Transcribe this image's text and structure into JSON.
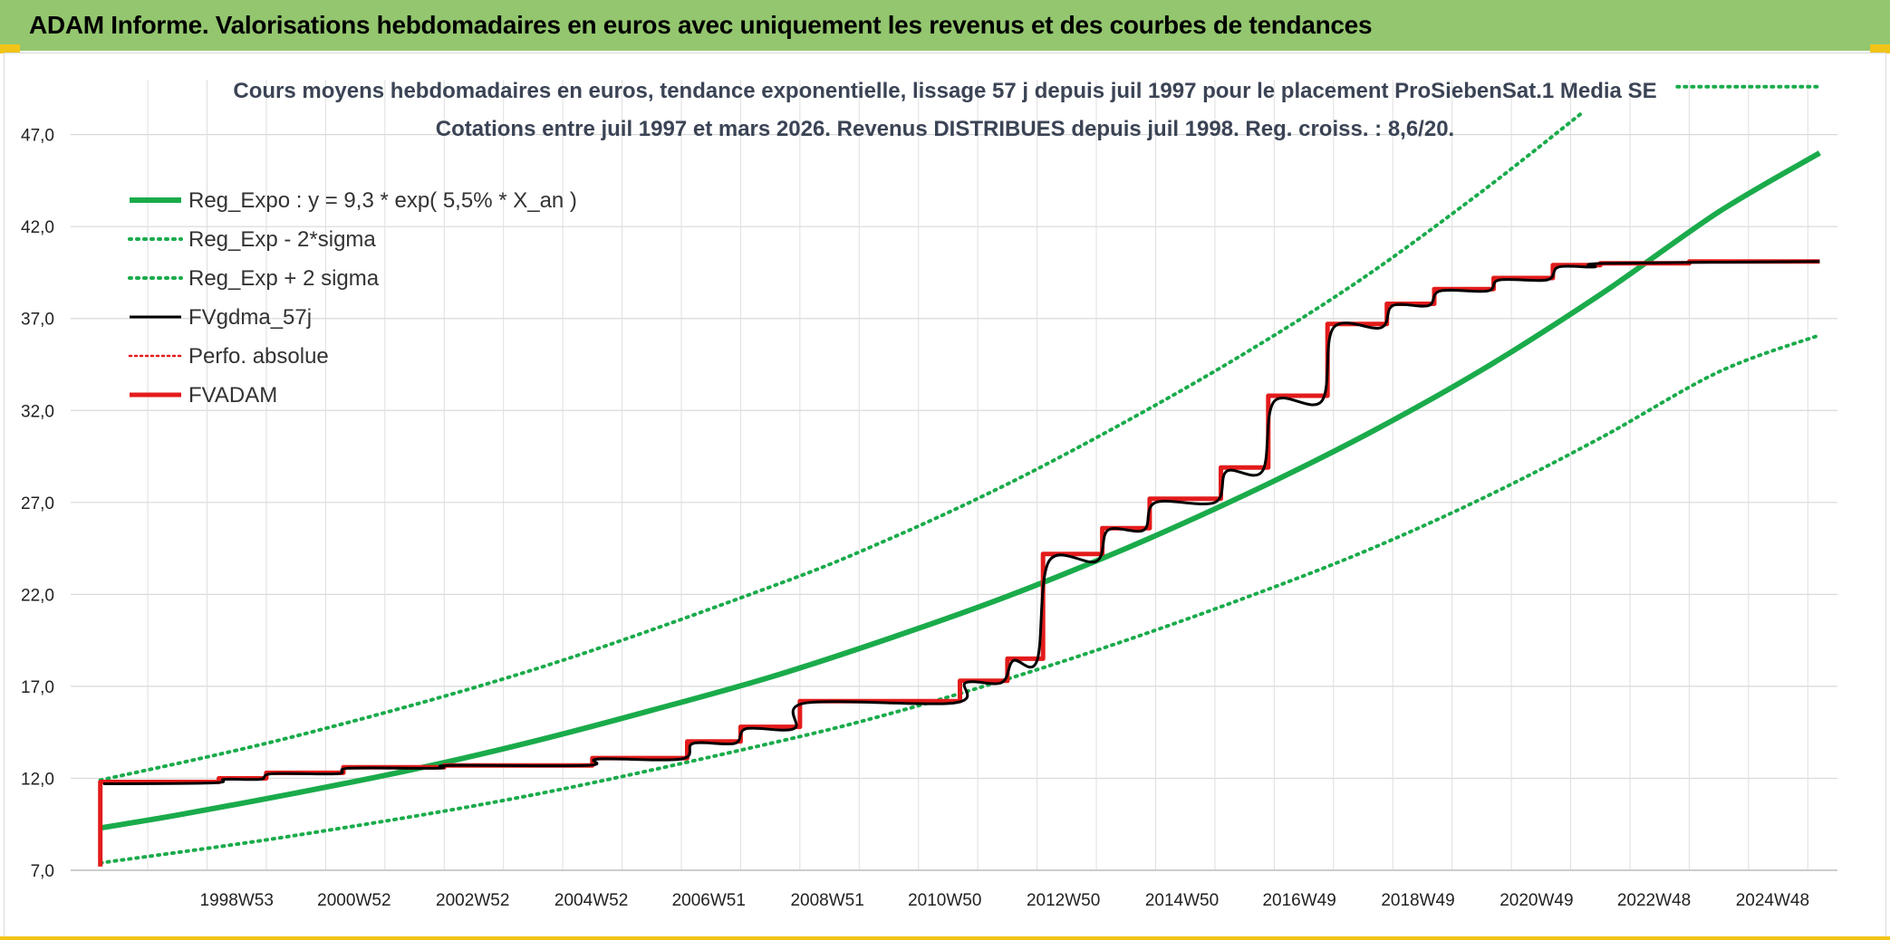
{
  "header": {
    "title": "ADAM Informe. Valorisations hebdomadaires en euros avec uniquement les revenus et des courbes de tendances"
  },
  "colors": {
    "header_bg": "#93c66e",
    "accent_yellow": "#f2c418",
    "trend": "#1aab4b",
    "price": "#e31b1b",
    "smoothed": "#000000",
    "title_text": "#3b4455"
  },
  "chart_data": {
    "type": "line",
    "title": "Cours moyens hebdomadaires en euros, tendance exponentielle, lissage 57 j depuis juil 1997 pour le placement ProSiebenSat.1 Media SE",
    "subtitle": "Cotations entre juil 1997 et mars 2026. Revenus DISTRIBUES depuis juil 1998. Reg. croiss. : 8,6/20.",
    "xlabel": "",
    "ylabel": "",
    "ylim": [
      7.0,
      49.0
    ],
    "xlim": [
      1996.2,
      2026.0
    ],
    "y_ticks": [
      "7,0",
      "12,0",
      "17,0",
      "22,0",
      "27,0",
      "32,0",
      "37,0",
      "42,0",
      "47,0"
    ],
    "x_ticks": [
      "1998W53",
      "2000W52",
      "2002W52",
      "2004W52",
      "2006W51",
      "2008W51",
      "2010W50",
      "2012W50",
      "2014W50",
      "2016W49",
      "2018W49",
      "2020W49",
      "2022W48",
      "2024W48"
    ],
    "grid": true,
    "legend_position": "top-left",
    "legend": [
      {
        "label": "Reg_Expo : y = 9,3 * exp( 5,5% *  X_an )",
        "style": "solid-thick",
        "color": "#1aab4b"
      },
      {
        "label": "Reg_Exp - 2*sigma",
        "style": "dotted",
        "color": "#1aab4b"
      },
      {
        "label": "Reg_Exp + 2 sigma",
        "style": "dotted",
        "color": "#1aab4b"
      },
      {
        "label": "FVgdma_57j",
        "style": "solid",
        "color": "#000000"
      },
      {
        "label": "Perfo. absolue",
        "style": "dotted",
        "color": "#e31b1b"
      },
      {
        "label": "FVADAM",
        "style": "solid-thick",
        "color": "#e31b1b"
      }
    ],
    "series": [
      {
        "name": "Reg_Expo : y = 9,3 * exp( 5,5% *  X_an )",
        "x": [
          1996.7,
          1998,
          2000,
          2002,
          2004,
          2006,
          2008,
          2010,
          2012,
          2014,
          2016,
          2018,
          2020,
          2022,
          2024,
          2025.7
        ],
        "y": [
          9.3,
          10.0,
          11.2,
          12.5,
          14.0,
          15.7,
          17.5,
          19.6,
          21.9,
          24.5,
          27.4,
          30.6,
          34.2,
          38.3,
          42.8,
          46.0
        ]
      },
      {
        "name": "Reg_Exp - 2*sigma",
        "x": [
          1996.7,
          2000,
          2004,
          2008,
          2010,
          2012,
          2014,
          2016,
          2018,
          2020,
          2022,
          2024,
          2025.7
        ],
        "y": [
          7.4,
          8.9,
          11.1,
          13.9,
          15.5,
          17.4,
          19.5,
          21.8,
          24.3,
          27.2,
          30.5,
          34.1,
          36.1
        ]
      },
      {
        "name": "Reg_Exp + 2 sigma",
        "x": [
          1996.7,
          2000,
          2004,
          2008,
          2010,
          2012,
          2014,
          2016,
          2018,
          2020,
          2021.7,
          2023.3,
          2025.7
        ],
        "y": [
          11.9,
          14.3,
          17.9,
          22.4,
          25.0,
          28.0,
          31.4,
          35.1,
          39.2,
          43.9,
          48.2,
          49.6,
          49.6
        ]
      },
      {
        "name": "FVADAM",
        "x": [
          1996.7,
          1996.7,
          1998.7,
          1998.7,
          1999.5,
          1999.5,
          2000.8,
          2000.8,
          2002.5,
          2002.5,
          2005.0,
          2005.0,
          2006.6,
          2006.6,
          2007.5,
          2007.5,
          2008.5,
          2008.5,
          2011.2,
          2011.2,
          2012.0,
          2012.0,
          2012.6,
          2012.6,
          2013.6,
          2013.6,
          2014.4,
          2014.4,
          2015.6,
          2015.6,
          2016.4,
          2016.4,
          2017.4,
          2017.4,
          2018.4,
          2018.4,
          2019.2,
          2019.2,
          2020.2,
          2020.2,
          2021.2,
          2021.2,
          2022.0,
          2022.0,
          2023.5,
          2023.5,
          2025.7
        ],
        "y": [
          7.2,
          11.8,
          11.8,
          12.0,
          12.0,
          12.3,
          12.3,
          12.6,
          12.6,
          12.7,
          12.7,
          13.1,
          13.1,
          14.0,
          14.0,
          14.8,
          14.8,
          16.2,
          16.2,
          17.3,
          17.3,
          18.5,
          18.5,
          24.2,
          24.2,
          25.6,
          25.6,
          27.2,
          27.2,
          28.9,
          28.9,
          32.8,
          32.8,
          36.7,
          36.7,
          37.8,
          37.8,
          38.6,
          38.6,
          39.2,
          39.2,
          39.9,
          39.9,
          40.0,
          40.0,
          40.1,
          40.1
        ]
      },
      {
        "name": "FVgdma_57j",
        "x": [
          1996.75,
          1998.6,
          1998.8,
          1999.4,
          1999.6,
          2000.7,
          2000.9,
          2002.4,
          2002.6,
          2004.9,
          2005.1,
          2006.5,
          2006.7,
          2007.4,
          2007.6,
          2008.4,
          2008.6,
          2011.1,
          2011.3,
          2011.9,
          2012.1,
          2012.5,
          2012.7,
          2013.5,
          2013.7,
          2014.3,
          2014.5,
          2015.5,
          2015.7,
          2016.3,
          2016.5,
          2017.3,
          2017.5,
          2018.3,
          2018.5,
          2019.1,
          2019.3,
          2020.1,
          2020.3,
          2021.1,
          2021.3,
          2021.9,
          2022.1,
          2025.7
        ],
        "y": [
          11.7,
          11.75,
          11.95,
          11.95,
          12.25,
          12.25,
          12.55,
          12.55,
          12.7,
          12.7,
          13.05,
          13.05,
          13.9,
          13.9,
          14.7,
          14.7,
          16.1,
          16.1,
          17.2,
          17.2,
          18.4,
          18.4,
          23.8,
          23.8,
          25.5,
          25.5,
          27.0,
          27.0,
          28.7,
          28.7,
          32.5,
          32.5,
          36.5,
          36.5,
          37.7,
          37.7,
          38.5,
          38.5,
          39.1,
          39.1,
          39.8,
          39.8,
          40.0,
          40.1
        ]
      }
    ]
  }
}
